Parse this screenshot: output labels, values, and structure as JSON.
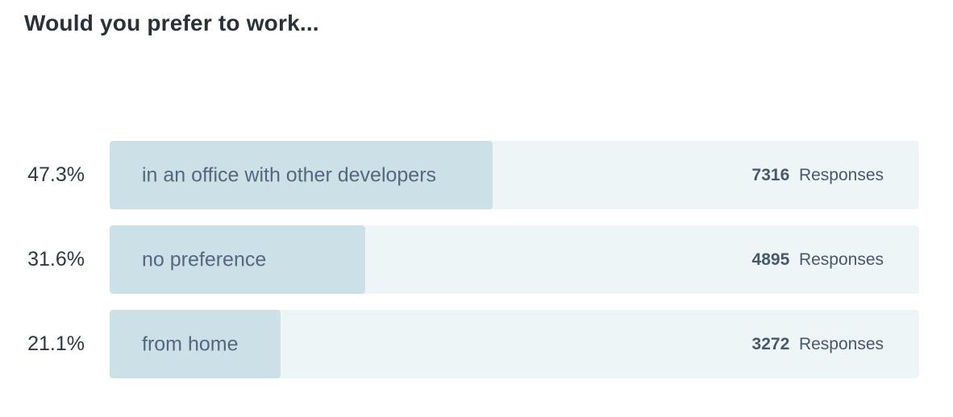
{
  "title": "Would you prefer to work...",
  "responses_word": "Responses",
  "rows": [
    {
      "percent": "47.3%",
      "label": "in an office with other developers",
      "count": "7316"
    },
    {
      "percent": "31.6%",
      "label": "no preference",
      "count": "4895"
    },
    {
      "percent": "21.1%",
      "label": "from home",
      "count": "3272"
    }
  ],
  "chart_data": {
    "type": "bar",
    "orientation": "horizontal",
    "title": "Would you prefer to work...",
    "categories": [
      "in an office with other developers",
      "no preference",
      "from home"
    ],
    "values": [
      47.3,
      31.6,
      21.1
    ],
    "value_unit": "%",
    "responses": [
      7316,
      4895,
      3272
    ],
    "xlim": [
      0,
      100
    ],
    "grid": false,
    "legend": "none",
    "colors": {
      "bar_fill": "#cbe1e7",
      "bar_track": "#eef5f7",
      "title_text": "#2b3138",
      "percent_text": "#30373f",
      "bar_label_text": "#55677e",
      "responses_text": "#46586f"
    }
  }
}
